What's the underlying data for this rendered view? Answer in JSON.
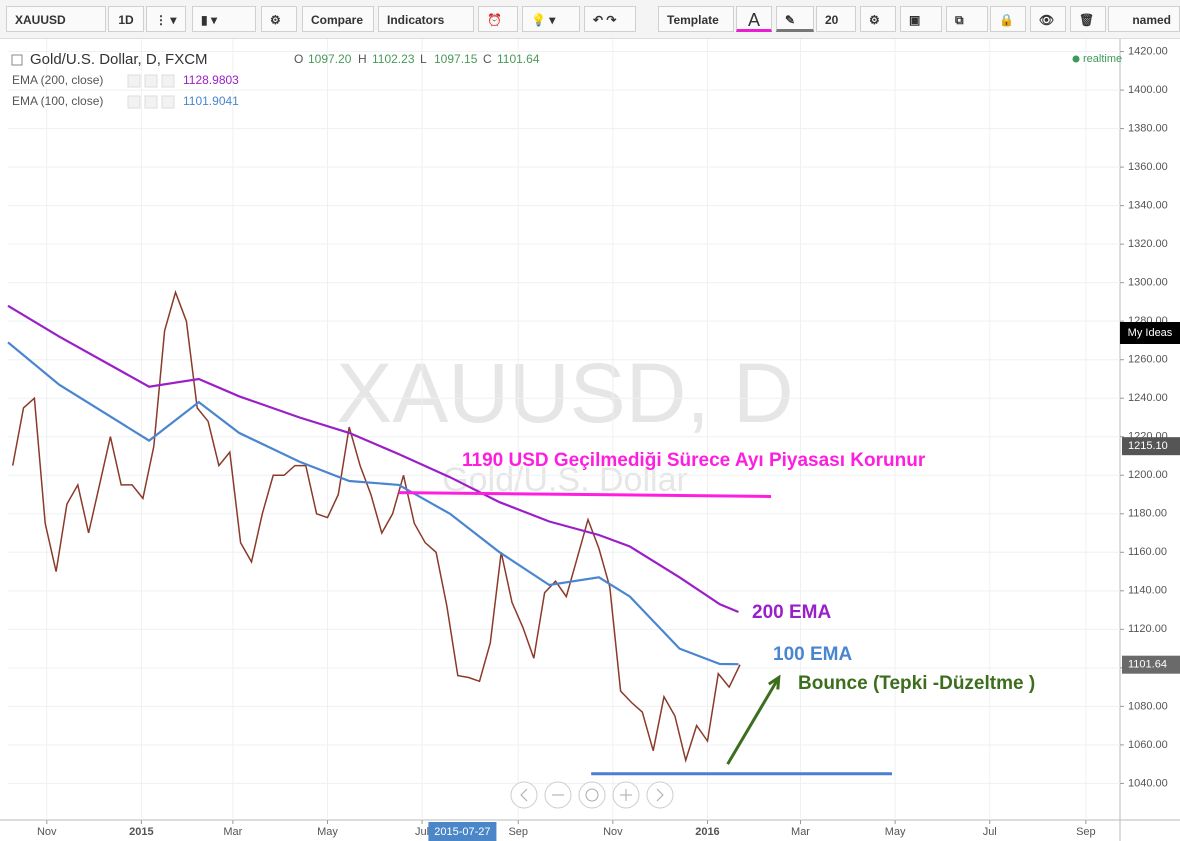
{
  "toolbar": {
    "symbol": "XAUUSD",
    "interval": "1D",
    "compare": "Compare",
    "indicators": "Indicators",
    "template": "Template",
    "font_letter": "A",
    "font_size": "20",
    "layout_name": "named"
  },
  "legend": {
    "ohlc": [
      {
        "key": "O",
        "value": "1097.20"
      },
      {
        "key": "H",
        "value": "1102.23"
      },
      {
        "key": "L",
        "value": "1097.15"
      },
      {
        "key": "C",
        "value": "1101.64"
      }
    ],
    "indicator_values": [
      "1128.9803",
      "1101.9041"
    ]
  },
  "status": "realtime",
  "watermark": {
    "symbol": "XAUUSD, D",
    "description": "Gold/U.S. Dollar"
  },
  "side_button": "My Ideas",
  "chart_data": {
    "type": "line",
    "xlim": [
      "2014-10-07",
      "2016-09-23"
    ],
    "ylim": [
      1021,
      1426
    ],
    "xticks": [
      {
        "value": "2014-11-01",
        "label": "Nov"
      },
      {
        "value": "2015-01-01",
        "label": "2015"
      },
      {
        "value": "2015-03-01",
        "label": "Mar"
      },
      {
        "value": "2015-05-01",
        "label": "May"
      },
      {
        "value": "2015-07-01",
        "label": "Jul"
      },
      {
        "value": "2015-09-01",
        "label": "Sep"
      },
      {
        "value": "2015-11-01",
        "label": "Nov"
      },
      {
        "value": "2016-01-01",
        "label": "2016"
      },
      {
        "value": "2016-03-01",
        "label": "Mar"
      },
      {
        "value": "2016-05-01",
        "label": "May"
      },
      {
        "value": "2016-07-01",
        "label": "Jul"
      },
      {
        "value": "2016-09-01",
        "label": "Sep"
      }
    ],
    "yticks": [
      {
        "value": 1040,
        "label": "1040.00"
      },
      {
        "value": 1060,
        "label": "1060.00"
      },
      {
        "value": 1080,
        "label": "1080.00"
      },
      {
        "value": 1100,
        "label": "1100.00"
      },
      {
        "value": 1120,
        "label": "1120.00"
      },
      {
        "value": 1140,
        "label": "1140.00"
      },
      {
        "value": 1160,
        "label": "1160.00"
      },
      {
        "value": 1180,
        "label": "1180.00"
      },
      {
        "value": 1200,
        "label": "1200.00"
      },
      {
        "value": 1220,
        "label": "1220.00"
      },
      {
        "value": 1240,
        "label": "1240.00"
      },
      {
        "value": 1260,
        "label": "1260.00"
      },
      {
        "value": 1280,
        "label": "1280.00"
      },
      {
        "value": 1300,
        "label": "1300.00"
      },
      {
        "value": 1320,
        "label": "1320.00"
      },
      {
        "value": 1340,
        "label": "1340.00"
      },
      {
        "value": 1360,
        "label": "1360.00"
      },
      {
        "value": 1380,
        "label": "1380.00"
      },
      {
        "value": 1400,
        "label": "1400.00"
      },
      {
        "value": 1420,
        "label": "1420.00"
      }
    ],
    "grid": true,
    "series": [
      {
        "name": "Gold/U.S. Dollar, D, FXCM",
        "color": "#8b3a2a",
        "x": [
          "2014-10-10",
          "2014-10-17",
          "2014-10-24",
          "2014-10-31",
          "2014-11-07",
          "2014-11-14",
          "2014-11-21",
          "2014-11-28",
          "2014-12-05",
          "2014-12-12",
          "2014-12-19",
          "2014-12-26",
          "2015-01-02",
          "2015-01-09",
          "2015-01-16",
          "2015-01-23",
          "2015-01-30",
          "2015-02-06",
          "2015-02-13",
          "2015-02-20",
          "2015-02-27",
          "2015-03-06",
          "2015-03-13",
          "2015-03-20",
          "2015-03-27",
          "2015-04-03",
          "2015-04-10",
          "2015-04-17",
          "2015-04-24",
          "2015-05-01",
          "2015-05-08",
          "2015-05-15",
          "2015-05-22",
          "2015-05-29",
          "2015-06-05",
          "2015-06-12",
          "2015-06-19",
          "2015-06-26",
          "2015-07-03",
          "2015-07-10",
          "2015-07-17",
          "2015-07-24",
          "2015-07-31",
          "2015-08-07",
          "2015-08-14",
          "2015-08-21",
          "2015-08-28",
          "2015-09-04",
          "2015-09-11",
          "2015-09-18",
          "2015-09-25",
          "2015-10-02",
          "2015-10-09",
          "2015-10-16",
          "2015-10-23",
          "2015-10-30",
          "2015-11-06",
          "2015-11-13",
          "2015-11-20",
          "2015-11-27",
          "2015-12-04",
          "2015-12-11",
          "2015-12-18",
          "2015-12-25",
          "2016-01-01",
          "2016-01-08",
          "2016-01-15",
          "2016-01-22"
        ],
        "values": [
          1205,
          1235,
          1240,
          1175,
          1150,
          1185,
          1195,
          1170,
          1195,
          1220,
          1195,
          1195,
          1188,
          1215,
          1275,
          1295,
          1280,
          1235,
          1228,
          1205,
          1212,
          1165,
          1155,
          1180,
          1200,
          1200,
          1205,
          1205,
          1180,
          1178,
          1190,
          1225,
          1205,
          1190,
          1170,
          1180,
          1200,
          1175,
          1165,
          1160,
          1132,
          1096,
          1095,
          1093,
          1113,
          1160,
          1134,
          1121,
          1105,
          1139,
          1145,
          1137,
          1157,
          1177,
          1162,
          1142,
          1088,
          1082,
          1077,
          1057,
          1085,
          1075,
          1052,
          1070,
          1062,
          1097,
          1090,
          1101.64
        ]
      },
      {
        "name": "EMA (200, close)",
        "color": "#9b1fc9",
        "x": [
          "2014-10-07",
          "2014-11-09",
          "2015-01-06",
          "2015-02-07",
          "2015-03-05",
          "2015-04-13",
          "2015-05-15",
          "2015-06-16",
          "2015-07-19",
          "2015-08-20",
          "2015-09-21",
          "2015-10-23",
          "2015-11-12",
          "2015-12-14",
          "2016-01-09",
          "2016-01-21"
        ],
        "values": [
          1288,
          1272,
          1246,
          1250,
          1241,
          1230,
          1222,
          1211,
          1199,
          1186,
          1176,
          1169,
          1163,
          1147,
          1133,
          1128.98
        ]
      },
      {
        "name": "EMA (100, close)",
        "color": "#4a86d0",
        "x": [
          "2014-10-07",
          "2014-11-09",
          "2015-01-06",
          "2015-02-07",
          "2015-03-05",
          "2015-04-13",
          "2015-05-15",
          "2015-06-16",
          "2015-07-19",
          "2015-08-20",
          "2015-09-21",
          "2015-10-23",
          "2015-11-12",
          "2015-12-14",
          "2016-01-09",
          "2016-01-21"
        ],
        "values": [
          1269,
          1247,
          1218,
          1238,
          1222,
          1207,
          1197,
          1195,
          1180,
          1160,
          1143,
          1147,
          1137,
          1110,
          1102,
          1101.9
        ]
      }
    ],
    "price_tags": [
      {
        "value": 1215.1,
        "label": "1215.10"
      },
      {
        "value": 1101.64,
        "label": "1101.64"
      }
    ],
    "crosshair_date": "2015-07-27",
    "annotations": {
      "texts": [
        {
          "text": "1190 USD Geçilmediği Sürece Ayı Piyasası Korunur",
          "color": "#ff1ee0"
        },
        {
          "text": "200 EMA",
          "color": "#9b1fc9"
        },
        {
          "text": "100 EMA",
          "color": "#4a86d0"
        },
        {
          "text": "Bounce (Tepki -Düzeltme )",
          "color": "#3d6e1e"
        }
      ],
      "lines": [
        {
          "x": [
            "2015-06-16",
            "2016-02-11"
          ],
          "y": [
            1191,
            1189
          ],
          "color": "#ff1ee0"
        },
        {
          "x": [
            "2015-10-18",
            "2016-04-29"
          ],
          "y": [
            1045,
            1045
          ],
          "color": "#4a7fd4"
        },
        {
          "x": [
            "2016-01-14",
            "2016-02-16"
          ],
          "y": [
            1050,
            1095
          ],
          "color": "#3d6e1e"
        }
      ]
    }
  }
}
